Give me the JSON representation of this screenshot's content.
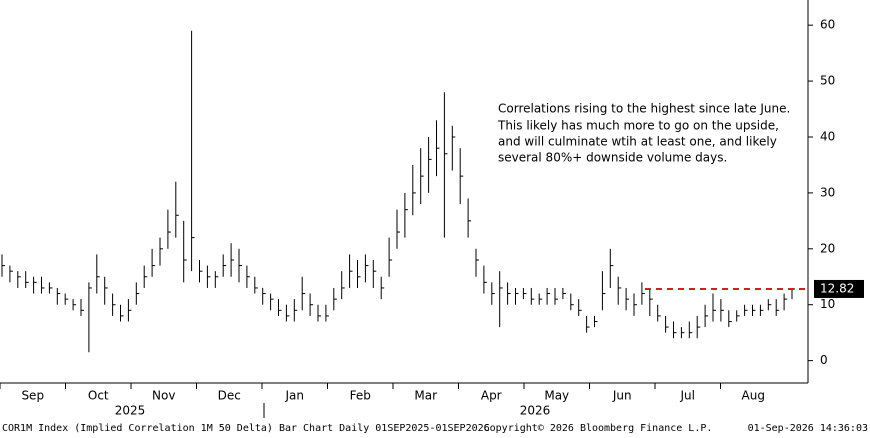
{
  "chart_data": {
    "type": "ohlc",
    "x_labels": [
      "Sep",
      "Oct",
      "Nov",
      "Dec",
      "Jan",
      "Feb",
      "Mar",
      "Apr",
      "May",
      "Jun",
      "Jul",
      "Aug"
    ],
    "year_labels": [
      "2025",
      "2026"
    ],
    "ylim": [
      -4,
      64.5
    ],
    "yticks": [
      0,
      10,
      20,
      30,
      40,
      50,
      60
    ],
    "series": [
      {
        "color": "#000000",
        "high": [
          19,
          17,
          16,
          16,
          15,
          15,
          14,
          13,
          12,
          11,
          11,
          14,
          19,
          15,
          12,
          10,
          11,
          14,
          17,
          20,
          22,
          27,
          32,
          25,
          59,
          18,
          17,
          16,
          19,
          21,
          20,
          17,
          15,
          13,
          12,
          11,
          10,
          11,
          15,
          12,
          10,
          10,
          13,
          16,
          19,
          18,
          19,
          18,
          15,
          22,
          27,
          30,
          35,
          38,
          40,
          43,
          48,
          42,
          38,
          29,
          20,
          17,
          14,
          16,
          14,
          13,
          13,
          13,
          12,
          13,
          13,
          13,
          12,
          11,
          8,
          8,
          16,
          20,
          15,
          13,
          12,
          14,
          13,
          10,
          8,
          7,
          6,
          7,
          8,
          10,
          12,
          11,
          9,
          9,
          10,
          10,
          10,
          11,
          11,
          12,
          13
        ],
        "low": [
          15,
          14,
          13,
          13,
          12,
          12,
          12,
          10,
          10,
          9,
          8,
          1.5,
          12,
          10,
          8,
          7,
          7,
          10,
          13,
          15,
          17,
          20,
          22,
          14,
          16,
          14,
          13,
          13,
          15,
          15,
          14,
          13,
          12,
          10,
          9,
          8,
          7,
          7,
          9,
          8,
          7,
          7,
          9,
          11,
          13,
          13,
          14,
          13,
          11,
          15,
          20,
          22,
          26,
          28,
          30,
          33,
          22,
          34,
          28,
          22,
          15,
          12,
          10,
          6,
          10,
          10,
          11,
          10,
          10,
          10,
          10,
          11,
          9,
          8,
          5,
          6,
          9,
          13,
          10,
          9,
          8,
          10,
          8,
          7,
          5,
          4,
          4,
          4,
          4,
          6,
          7,
          7,
          6,
          7,
          8,
          8,
          8,
          9,
          8,
          9,
          11
        ],
        "close": [
          17,
          16,
          15,
          14,
          14,
          13,
          13,
          12,
          11,
          10,
          9,
          13,
          15,
          13,
          10,
          8,
          9,
          12,
          15,
          17,
          20,
          23,
          26,
          18,
          22,
          16,
          15,
          15,
          17,
          18,
          17,
          15,
          13,
          12,
          11,
          9,
          8,
          9,
          12,
          10,
          8,
          8,
          11,
          13,
          16,
          15,
          17,
          16,
          13,
          18,
          23,
          27,
          30,
          33,
          36,
          38,
          37,
          40,
          33,
          25,
          18,
          14,
          12,
          13,
          12,
          12,
          12,
          11,
          11,
          12,
          11,
          12,
          10,
          9,
          6,
          7,
          12,
          17,
          13,
          11,
          10,
          12,
          11,
          8,
          6,
          5,
          5,
          5,
          6,
          8,
          9,
          9,
          7,
          8,
          9,
          9,
          9,
          10,
          9,
          11,
          12.82
        ]
      }
    ],
    "reference": {
      "value": 12.82,
      "color": "#d0201f"
    },
    "annotation": [
      "Correlations rising to the highest since late June.",
      "This likely has much more to go on the upside,",
      "and will culminate wtih at least one, and likely",
      "several 80%+ downside volume days."
    ],
    "footer": {
      "left": "COR1M Index (Implied Correlation 1M 50 Delta) Bar Chart Daily 01SEP2025-01SEP2026",
      "center": "Copyright© 2026 Bloomberg Finance L.P.",
      "right": "01-Sep-2026 14:36:03"
    }
  }
}
